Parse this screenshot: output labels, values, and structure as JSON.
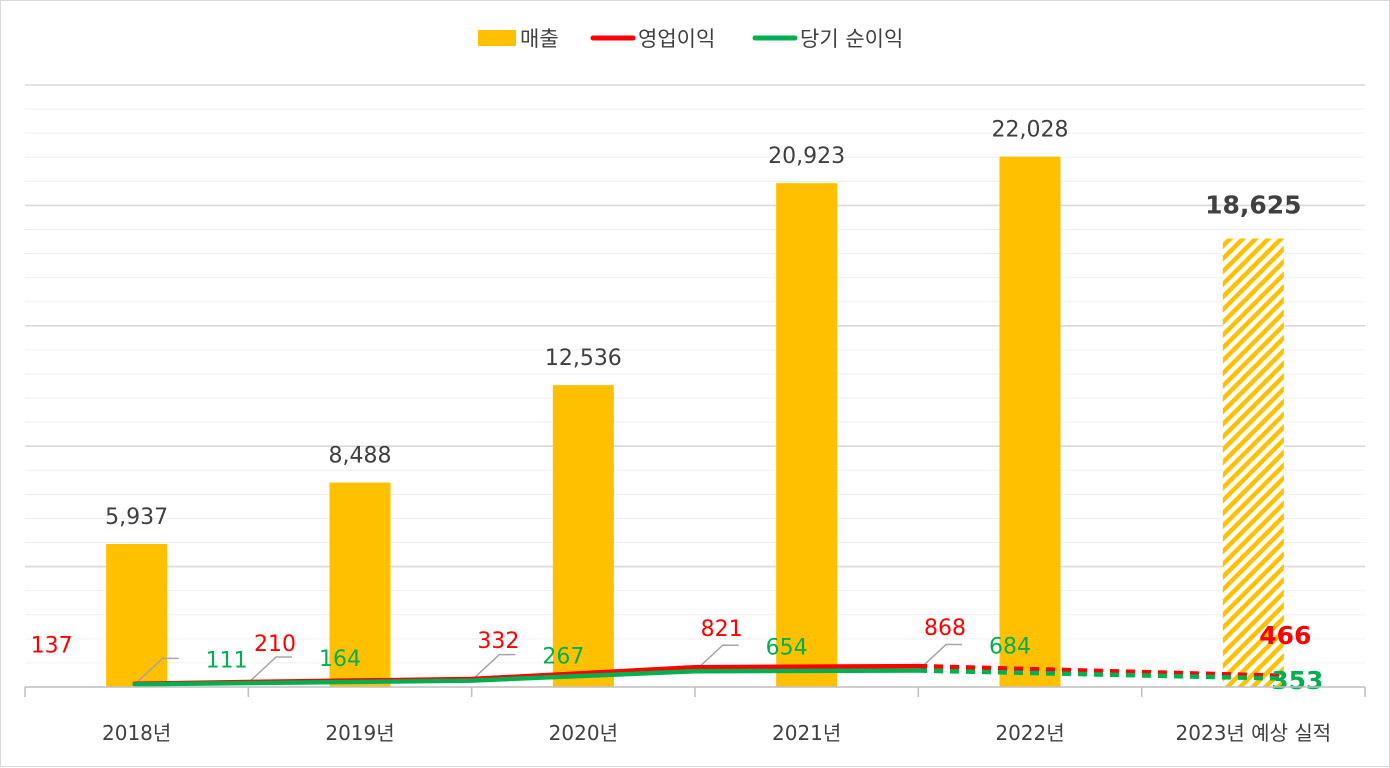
{
  "chart_data": {
    "type": "bar",
    "title": "",
    "xlabel": "",
    "ylabel": "",
    "categories": [
      "2018년",
      "2019년",
      "2020년",
      "2021년",
      "2022년",
      "2023년 예상 실적"
    ],
    "ylim": [
      0,
      25000
    ],
    "grid": true,
    "legend_position": "top-center",
    "series": [
      {
        "name": "매출",
        "kind": "bar",
        "color": "#FFC000",
        "values": [
          5937,
          8488,
          12536,
          20923,
          22028,
          18625
        ],
        "labels": [
          "5,937",
          "8,488",
          "12,536",
          "20,923",
          "22,028",
          "18,625"
        ],
        "forecast_last": true
      },
      {
        "name": "영업이익",
        "kind": "line",
        "color": "#FF0000",
        "values": [
          137,
          210,
          332,
          821,
          868,
          466
        ],
        "labels": [
          "137",
          "210",
          "332",
          "821",
          "868",
          "466"
        ],
        "forecast_last": true
      },
      {
        "name": "당기 순이익",
        "kind": "line",
        "color": "#00B050",
        "values": [
          111,
          164,
          267,
          654,
          684,
          353
        ],
        "labels": [
          "111",
          "164",
          "267",
          "654",
          "684",
          "353"
        ],
        "forecast_last": true
      }
    ]
  }
}
